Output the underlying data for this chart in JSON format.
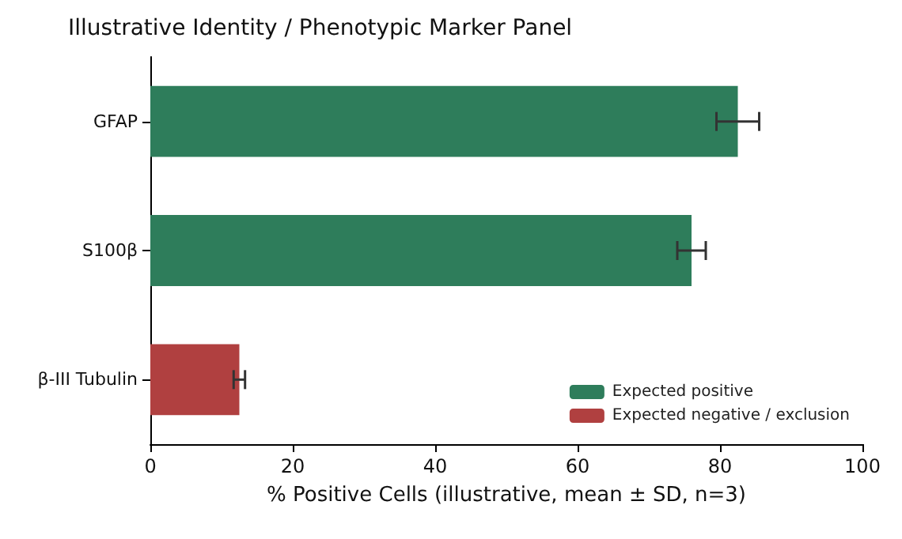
{
  "chart_data": {
    "type": "bar",
    "orientation": "horizontal",
    "title": "Illustrative Identity / Phenotypic Marker Panel",
    "xlabel": "% Positive Cells (illustrative, mean ± SD, n=3)",
    "categories": [
      "GFAP",
      "S100β",
      "β-III Tubulin"
    ],
    "series": [
      {
        "name": "Expected positive",
        "color": "#2e7d5b",
        "values": [
          82.5,
          76,
          null
        ],
        "errors": [
          3,
          2,
          null
        ]
      },
      {
        "name": "Expected negative / exclusion",
        "color": "#b04040",
        "values": [
          null,
          null,
          12.5
        ],
        "errors": [
          null,
          null,
          0.8
        ]
      }
    ],
    "xlim": [
      0,
      100
    ],
    "xticks": [
      0,
      20,
      40,
      60,
      80,
      100
    ],
    "legend": "bottom right",
    "grid": false
  }
}
